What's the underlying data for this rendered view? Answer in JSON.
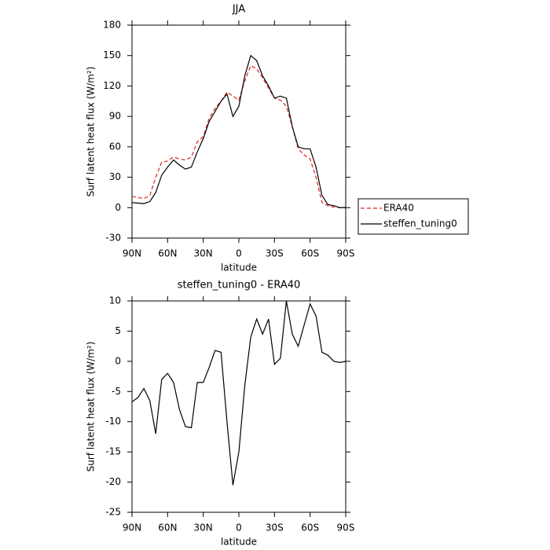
{
  "chart_data": [
    {
      "type": "line",
      "title": "JJA",
      "xlabel": "latitude",
      "ylabel": "Surf latent heat flux (W/m²)",
      "x": [
        90,
        85,
        80,
        75,
        70,
        65,
        60,
        55,
        50,
        45,
        40,
        35,
        30,
        25,
        20,
        15,
        10,
        5,
        0,
        -5,
        -10,
        -15,
        -20,
        -25,
        -30,
        -35,
        -40,
        -45,
        -50,
        -55,
        -60,
        -65,
        -70,
        -75,
        -80,
        -85,
        -90
      ],
      "xlim": [
        90,
        -90
      ],
      "xticks": [
        {
          "value": 90,
          "label": "90N"
        },
        {
          "value": 60,
          "label": "60N"
        },
        {
          "value": 30,
          "label": "30N"
        },
        0,
        {
          "value": -30,
          "label": "30S"
        },
        {
          "value": -60,
          "label": "60S"
        },
        {
          "value": -90,
          "label": "90S"
        }
      ],
      "ylim": [
        -30,
        180
      ],
      "yticks": [
        -30,
        0,
        30,
        60,
        90,
        120,
        150,
        180
      ],
      "legend": "right",
      "series": [
        {
          "name": "ERA40",
          "color": "#e02020",
          "dash": true,
          "values": [
            11,
            10,
            9,
            12,
            30,
            45,
            46,
            50,
            48,
            47,
            50,
            65,
            70,
            88,
            98,
            105,
            114,
            110,
            106,
            125,
            140,
            137,
            128,
            118,
            108,
            106,
            100,
            80,
            58,
            52,
            48,
            30,
            5,
            2,
            0.5,
            0,
            0
          ]
        },
        {
          "name": "steffen_tuning0",
          "color": "#000000",
          "dash": false,
          "values": [
            5,
            4.5,
            4,
            6,
            15,
            32,
            40,
            47,
            42,
            38,
            40,
            55,
            68,
            85,
            95,
            105,
            112,
            90,
            100,
            130,
            150,
            145,
            130,
            120,
            108,
            110,
            108,
            80,
            60,
            58,
            58,
            40,
            12,
            3,
            2,
            0,
            0
          ]
        }
      ]
    },
    {
      "type": "line",
      "title": "steffen_tuning0 - ERA40",
      "xlabel": "latitude",
      "ylabel": "Surf latent heat flux (W/m²)",
      "x": [
        90,
        85,
        80,
        75,
        70,
        65,
        60,
        55,
        50,
        45,
        40,
        35,
        30,
        25,
        20,
        15,
        10,
        5,
        0,
        -5,
        -10,
        -15,
        -20,
        -25,
        -30,
        -35,
        -40,
        -45,
        -50,
        -55,
        -60,
        -65,
        -70,
        -75,
        -80,
        -85,
        -90
      ],
      "xlim": [
        90,
        -90
      ],
      "xticks": [
        {
          "value": 90,
          "label": "90N"
        },
        {
          "value": 60,
          "label": "60N"
        },
        {
          "value": 30,
          "label": "30N"
        },
        0,
        {
          "value": -30,
          "label": "30S"
        },
        {
          "value": -60,
          "label": "60S"
        },
        {
          "value": -90,
          "label": "90S"
        }
      ],
      "ylim": [
        -25,
        10
      ],
      "yticks": [
        -25,
        -20,
        -15,
        -10,
        -5,
        0,
        5,
        10
      ],
      "series": [
        {
          "color": "#000000",
          "dash": false,
          "values": [
            -6.7,
            -6,
            -4.5,
            -6.5,
            -12,
            -3,
            -2,
            -3.5,
            -8,
            -10.8,
            -11,
            -3.5,
            -3.5,
            -1,
            1.8,
            1.5,
            -10,
            -20.5,
            -15,
            -4,
            4,
            7,
            4.5,
            7,
            -0.5,
            0.5,
            10,
            4.5,
            2.5,
            6,
            9.5,
            7.5,
            1.5,
            1,
            0,
            -0.2,
            0
          ]
        }
      ]
    }
  ]
}
